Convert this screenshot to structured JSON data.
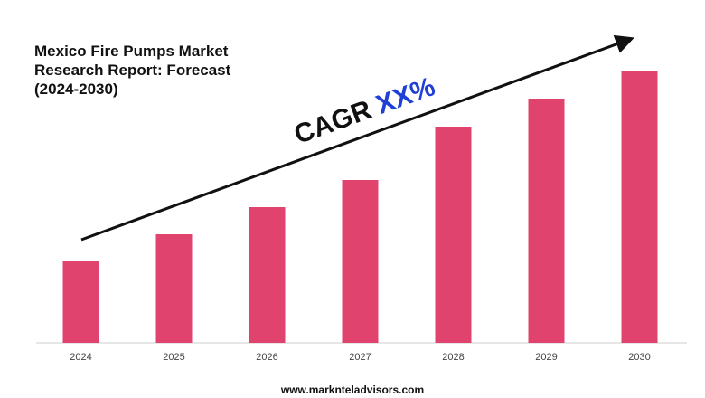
{
  "chart_data": {
    "type": "bar",
    "title": "Mexico Fire Pumps Market Research Report: Forecast (2024-2030)",
    "categories": [
      "2024",
      "2025",
      "2026",
      "2027",
      "2028",
      "2029",
      "2030"
    ],
    "values": [
      90,
      120,
      150,
      180,
      239,
      270,
      300
    ],
    "color": "#e0436e",
    "annotation": {
      "label": "CAGR",
      "value": "XX%",
      "value_color": "#1f3fd6"
    },
    "footer": "www.marknteladvisors.com"
  }
}
